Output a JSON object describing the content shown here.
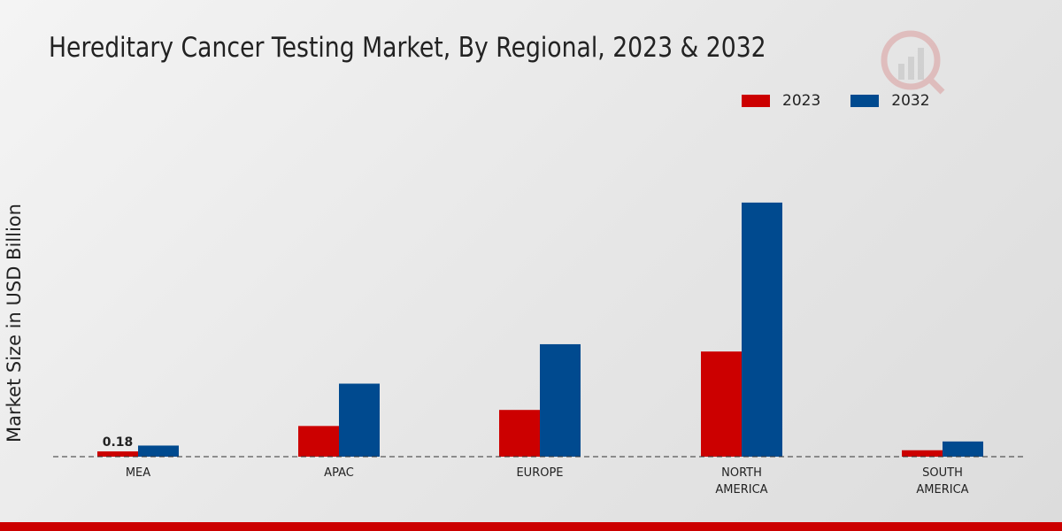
{
  "chart_data": {
    "type": "bar",
    "title": "Hereditary Cancer Testing Market, By Regional, 2023 & 2032",
    "ylabel": "Market Size in USD Billion",
    "xlabel": "",
    "categories": [
      [
        "MEA"
      ],
      [
        "APAC"
      ],
      [
        "EUROPE"
      ],
      [
        "NORTH",
        "AMERICA"
      ],
      [
        "SOUTH",
        "AMERICA"
      ]
    ],
    "series": [
      {
        "name": "2023",
        "color": "#cc0000",
        "values": [
          0.18,
          1.05,
          1.6,
          3.6,
          0.22
        ]
      },
      {
        "name": "2032",
        "color": "#004a8f",
        "values": [
          0.38,
          2.5,
          3.85,
          8.7,
          0.52
        ]
      }
    ],
    "data_labels": [
      {
        "series": 0,
        "index": 0,
        "text": "0.18"
      }
    ],
    "ylim": [
      0,
      12
    ],
    "grid": false,
    "baseline": "dashed",
    "legend_position": "top-right"
  },
  "colors": {
    "accent_bar": "#cc0000"
  }
}
